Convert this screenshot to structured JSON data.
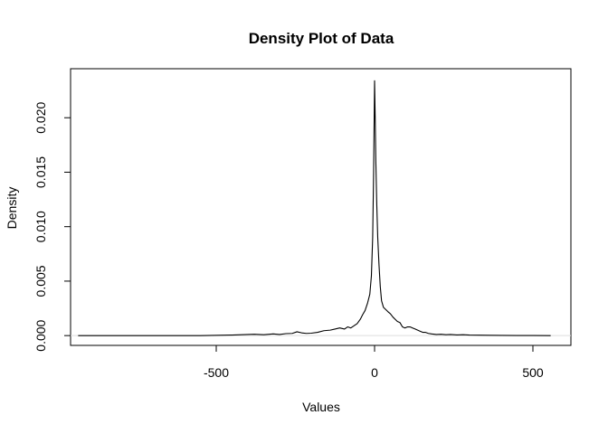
{
  "chart_data": {
    "type": "line",
    "title": "Density Plot of Data",
    "xlabel": "Values",
    "ylabel": "Density",
    "xlim": [
      -960,
      620
    ],
    "ylim": [
      -0.0009,
      0.0245
    ],
    "x_ticks": [
      -500,
      0,
      500
    ],
    "x_tick_labels": [
      "-500",
      "0",
      "500"
    ],
    "y_ticks": [
      0.0,
      0.005,
      0.01,
      0.015,
      0.02
    ],
    "y_tick_labels": [
      "0.000",
      "0.005",
      "0.010",
      "0.015",
      "0.020"
    ],
    "grid": false,
    "baseline": 0,
    "line_color": "#000000",
    "baseline_color": "#dddddd",
    "series": [
      {
        "x": [
          -935,
          -850,
          -750,
          -650,
          -550,
          -450,
          -400,
          -380,
          -350,
          -320,
          -300,
          -280,
          -260,
          -245,
          -230,
          -215,
          -200,
          -180,
          -160,
          -140,
          -125,
          -110,
          -95,
          -85,
          -75,
          -65,
          -55,
          -45,
          -38,
          -30,
          -22,
          -15,
          -10,
          -6,
          -3,
          0,
          2,
          4,
          7,
          10,
          14,
          18,
          22,
          28,
          35,
          42,
          50,
          58,
          65,
          72,
          80,
          88,
          96,
          104,
          112,
          120,
          128,
          136,
          144,
          152,
          160,
          170,
          180,
          195,
          210,
          225,
          240,
          260,
          280,
          300,
          330,
          360,
          400,
          450,
          500,
          555
        ],
        "y": [
          0.0,
          0.0,
          0.0,
          0.0,
          0.0,
          5e-05,
          0.0001,
          0.00012,
          8e-05,
          0.00015,
          0.0001,
          0.00018,
          0.0002,
          0.00035,
          0.00025,
          0.0002,
          0.00022,
          0.0003,
          0.00045,
          0.0005,
          0.0006,
          0.0007,
          0.0006,
          0.0008,
          0.0007,
          0.0009,
          0.0011,
          0.0015,
          0.0019,
          0.0023,
          0.003,
          0.0038,
          0.0055,
          0.009,
          0.015,
          0.0234,
          0.02,
          0.016,
          0.012,
          0.009,
          0.0065,
          0.0045,
          0.0032,
          0.0026,
          0.0024,
          0.0022,
          0.002,
          0.0017,
          0.0015,
          0.0013,
          0.0012,
          0.0008,
          0.0007,
          0.0008,
          0.0008,
          0.0007,
          0.0006,
          0.0005,
          0.0004,
          0.0003,
          0.0003,
          0.0002,
          0.00015,
          0.0001,
          0.00012,
          8e-05,
          0.0001,
          6e-05,
          8e-05,
          5e-05,
          4e-05,
          3e-05,
          2e-05,
          1e-05,
          1e-05,
          0.0
        ]
      }
    ]
  }
}
